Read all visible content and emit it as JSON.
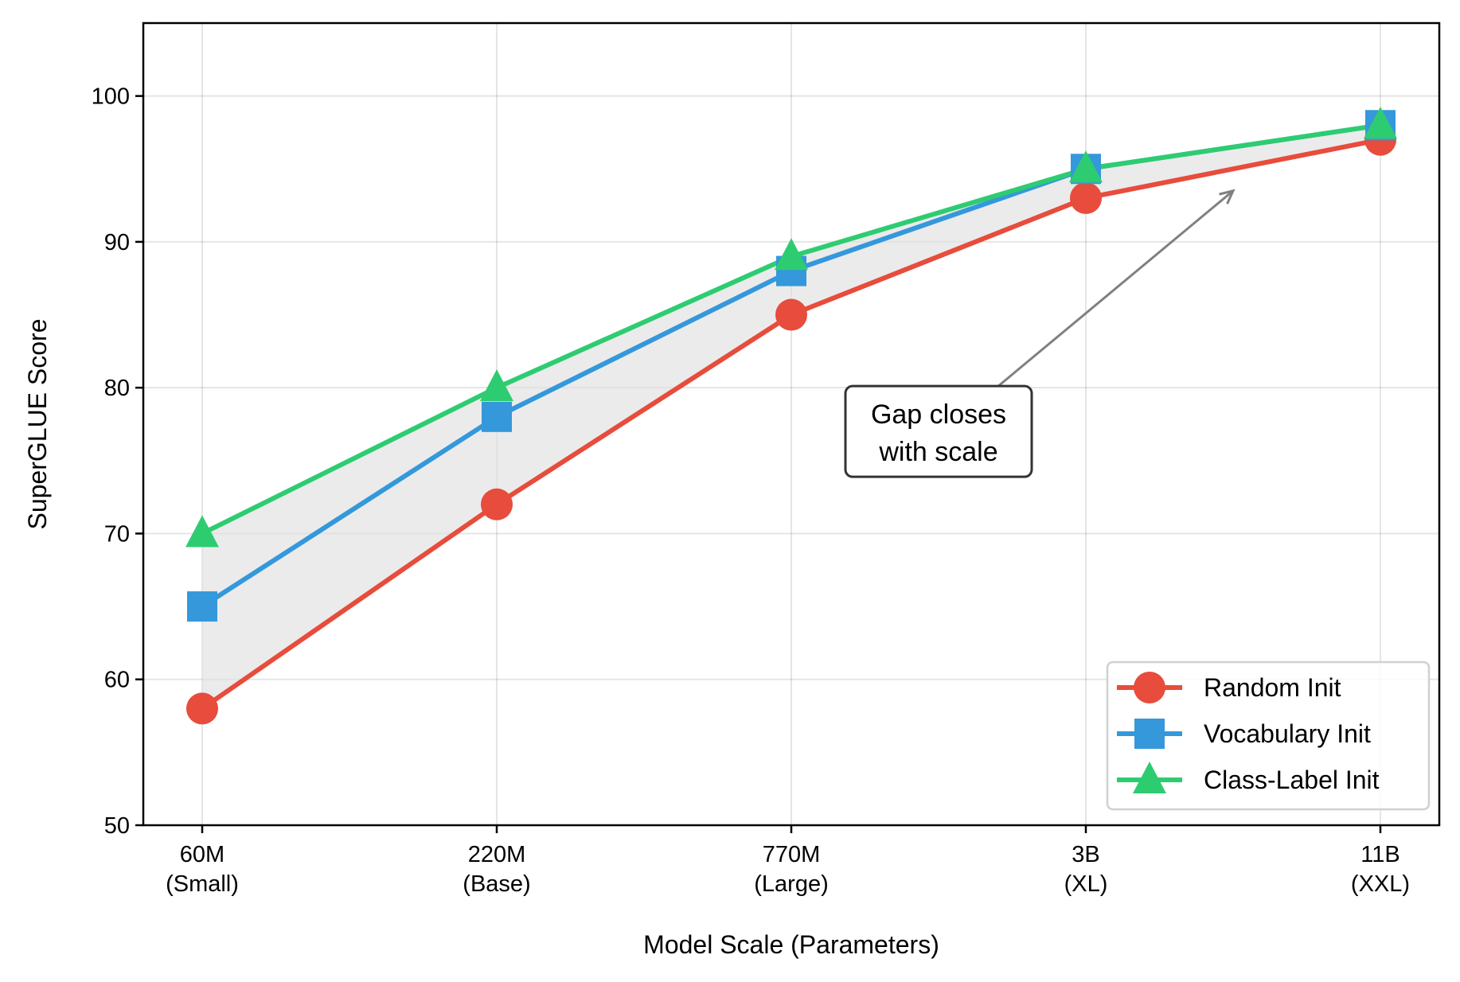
{
  "chart_data": {
    "type": "line",
    "title": "",
    "xlabel": "Model Scale (Parameters)",
    "ylabel": "SuperGLUE Score",
    "categories": [
      [
        "60M",
        "(Small)"
      ],
      [
        "220M",
        "(Base)"
      ],
      [
        "770M",
        "(Large)"
      ],
      [
        "3B",
        "(XL)"
      ],
      [
        "11B",
        "(XXL)"
      ]
    ],
    "xlim": [
      -0.2,
      4.2
    ],
    "ylim": [
      50,
      105
    ],
    "yticks": [
      50,
      60,
      70,
      80,
      90,
      100
    ],
    "grid": true,
    "legend_position": "lower-right",
    "series": [
      {
        "name": "Random Init",
        "values": [
          58,
          72,
          85,
          93,
          97
        ],
        "color": "#e74c3c",
        "marker": "circle"
      },
      {
        "name": "Vocabulary Init",
        "values": [
          65,
          78,
          88,
          95,
          98
        ],
        "color": "#3498db",
        "marker": "square"
      },
      {
        "name": "Class-Label Init",
        "values": [
          70,
          80,
          89,
          95,
          98
        ],
        "color": "#2ecc71",
        "marker": "triangle"
      }
    ],
    "shaded_region": {
      "between": [
        "Random Init",
        "Class-Label Init"
      ],
      "color": "#e0e0e0"
    },
    "annotation": {
      "lines": [
        "Gap closes",
        "with scale"
      ],
      "text_at": [
        2.5,
        77
      ],
      "arrow_to": [
        3.5,
        93.5
      ],
      "arrow_color": "#808080"
    }
  }
}
